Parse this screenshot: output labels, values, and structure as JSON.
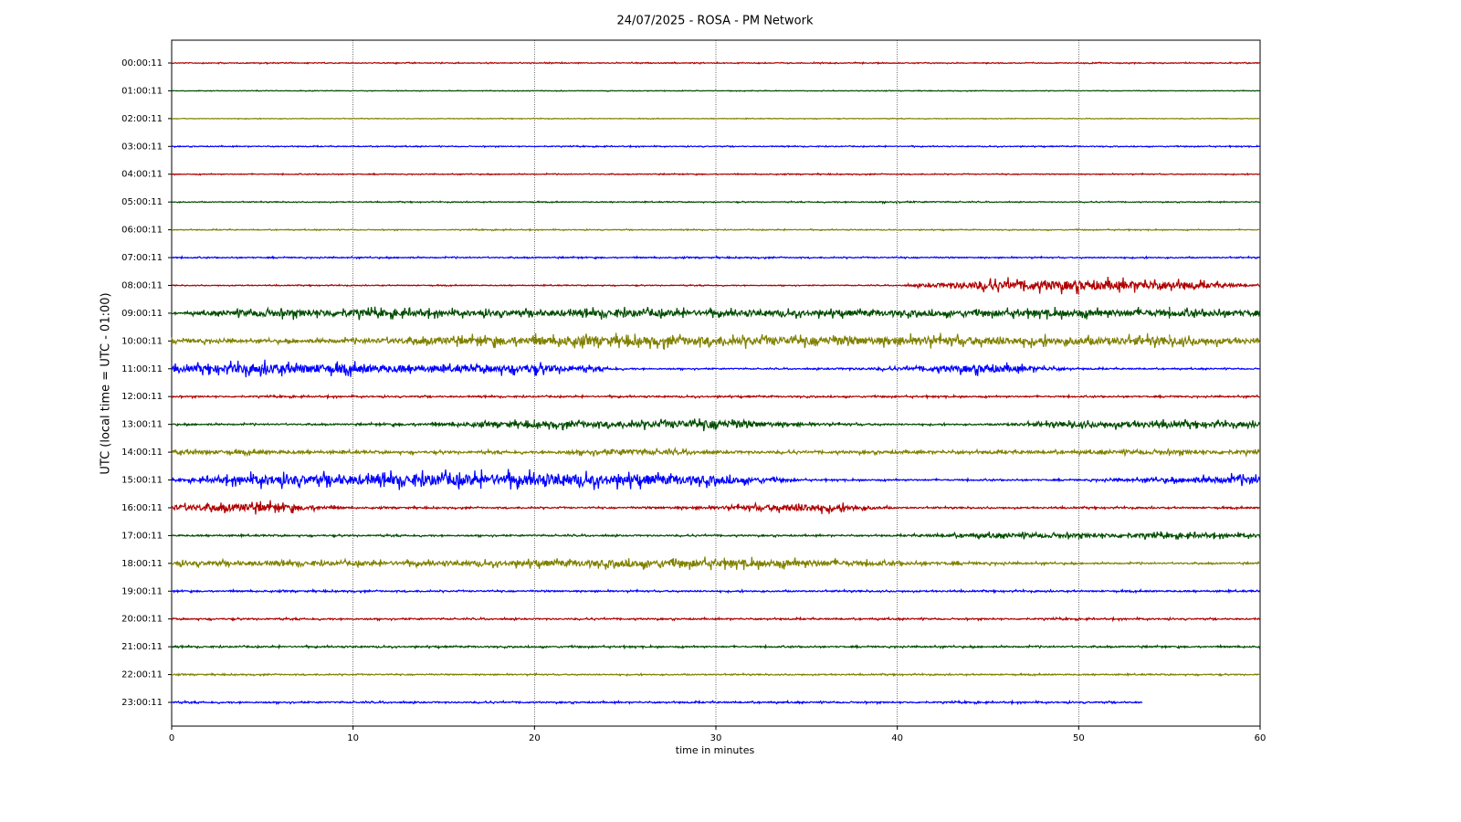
{
  "chart_data": {
    "type": "helicorder",
    "title": "24/07/2025 - ROSA - PM Network",
    "xlabel": "time in minutes",
    "ylabel": "UTC (local time = UTC - 01:00)",
    "xlim": [
      0,
      60
    ],
    "xticks": [
      0,
      10,
      20,
      30,
      40,
      50,
      60
    ],
    "grid": true,
    "series": [
      {
        "name": "00:00:11",
        "color": "#b00000",
        "x": [
          0,
          5,
          10,
          15,
          20,
          25,
          30,
          35,
          40,
          45,
          50,
          55,
          60
        ],
        "values": [
          0.03,
          0.03,
          0.03,
          0.03,
          0.03,
          0.03,
          0.03,
          0.03,
          0.03,
          0.03,
          0.03,
          0.03,
          0.03
        ]
      },
      {
        "name": "01:00:11",
        "color": "#004d00",
        "x": [
          0,
          5,
          10,
          15,
          20,
          25,
          30,
          35,
          40,
          45,
          50,
          55,
          60
        ],
        "values": [
          0.02,
          0.02,
          0.02,
          0.02,
          0.02,
          0.02,
          0.02,
          0.02,
          0.02,
          0.02,
          0.02,
          0.02,
          0.02
        ]
      },
      {
        "name": "02:00:11",
        "color": "#808000",
        "x": [
          0,
          5,
          10,
          15,
          20,
          25,
          30,
          35,
          40,
          45,
          50,
          55,
          60
        ],
        "values": [
          0.02,
          0.02,
          0.02,
          0.02,
          0.02,
          0.02,
          0.02,
          0.02,
          0.02,
          0.02,
          0.02,
          0.02,
          0.02
        ]
      },
      {
        "name": "03:00:11",
        "color": "#0000ff",
        "x": [
          0,
          5,
          10,
          15,
          20,
          25,
          30,
          35,
          40,
          45,
          50,
          55,
          60
        ],
        "values": [
          0.03,
          0.03,
          0.03,
          0.03,
          0.03,
          0.03,
          0.03,
          0.03,
          0.03,
          0.03,
          0.03,
          0.03,
          0.03
        ]
      },
      {
        "name": "04:00:11",
        "color": "#b00000",
        "x": [
          0,
          5,
          10,
          15,
          20,
          25,
          30,
          35,
          40,
          45,
          50,
          55,
          60
        ],
        "values": [
          0.03,
          0.03,
          0.03,
          0.03,
          0.03,
          0.03,
          0.03,
          0.03,
          0.03,
          0.03,
          0.03,
          0.03,
          0.03
        ]
      },
      {
        "name": "05:00:11",
        "color": "#004d00",
        "x": [
          0,
          5,
          10,
          15,
          20,
          25,
          30,
          35,
          40,
          45,
          50,
          55,
          60
        ],
        "values": [
          0.03,
          0.03,
          0.03,
          0.03,
          0.03,
          0.03,
          0.03,
          0.03,
          0.05,
          0.03,
          0.03,
          0.03,
          0.03
        ]
      },
      {
        "name": "06:00:11",
        "color": "#808000",
        "x": [
          0,
          5,
          10,
          15,
          20,
          25,
          30,
          35,
          40,
          45,
          50,
          55,
          60
        ],
        "values": [
          0.03,
          0.03,
          0.03,
          0.03,
          0.03,
          0.03,
          0.03,
          0.03,
          0.03,
          0.03,
          0.03,
          0.03,
          0.03
        ]
      },
      {
        "name": "07:00:11",
        "color": "#0000ff",
        "x": [
          0,
          5,
          10,
          15,
          20,
          25,
          30,
          35,
          40,
          45,
          50,
          55,
          60
        ],
        "values": [
          0.04,
          0.04,
          0.04,
          0.04,
          0.04,
          0.04,
          0.04,
          0.04,
          0.04,
          0.04,
          0.04,
          0.04,
          0.04
        ]
      },
      {
        "name": "08:00:11",
        "color": "#b00000",
        "x": [
          0,
          5,
          10,
          15,
          20,
          25,
          30,
          35,
          40,
          45,
          50,
          55,
          60
        ],
        "values": [
          0.03,
          0.03,
          0.03,
          0.03,
          0.03,
          0.03,
          0.03,
          0.03,
          0.03,
          0.3,
          0.35,
          0.3,
          0.05
        ]
      },
      {
        "name": "09:00:11",
        "color": "#004d00",
        "x": [
          0,
          5,
          10,
          15,
          20,
          25,
          30,
          35,
          40,
          45,
          50,
          55,
          60
        ],
        "values": [
          0.05,
          0.25,
          0.25,
          0.2,
          0.2,
          0.25,
          0.2,
          0.2,
          0.2,
          0.2,
          0.25,
          0.25,
          0.2
        ]
      },
      {
        "name": "10:00:11",
        "color": "#808000",
        "x": [
          0,
          5,
          10,
          15,
          20,
          25,
          30,
          35,
          40,
          45,
          50,
          55,
          60
        ],
        "values": [
          0.15,
          0.1,
          0.15,
          0.25,
          0.3,
          0.3,
          0.3,
          0.3,
          0.3,
          0.3,
          0.25,
          0.3,
          0.15
        ]
      },
      {
        "name": "11:00:11",
        "color": "#0000ff",
        "x": [
          0,
          5,
          10,
          15,
          20,
          25,
          30,
          35,
          40,
          45,
          50,
          55,
          60
        ],
        "values": [
          0.2,
          0.35,
          0.3,
          0.2,
          0.3,
          0.05,
          0.04,
          0.04,
          0.1,
          0.3,
          0.05,
          0.04,
          0.04
        ]
      },
      {
        "name": "12:00:11",
        "color": "#b00000",
        "x": [
          0,
          5,
          10,
          15,
          20,
          25,
          30,
          35,
          40,
          45,
          50,
          55,
          60
        ],
        "values": [
          0.05,
          0.05,
          0.05,
          0.05,
          0.05,
          0.05,
          0.05,
          0.05,
          0.05,
          0.05,
          0.05,
          0.05,
          0.05
        ]
      },
      {
        "name": "13:00:11",
        "color": "#004d00",
        "x": [
          0,
          5,
          10,
          15,
          20,
          25,
          30,
          35,
          40,
          45,
          50,
          55,
          60
        ],
        "values": [
          0.05,
          0.05,
          0.05,
          0.1,
          0.2,
          0.2,
          0.3,
          0.1,
          0.05,
          0.05,
          0.2,
          0.2,
          0.15
        ]
      },
      {
        "name": "14:00:11",
        "color": "#808000",
        "x": [
          0,
          5,
          10,
          15,
          20,
          25,
          30,
          35,
          40,
          45,
          50,
          55,
          60
        ],
        "values": [
          0.15,
          0.12,
          0.08,
          0.08,
          0.08,
          0.2,
          0.1,
          0.08,
          0.1,
          0.1,
          0.1,
          0.15,
          0.12
        ]
      },
      {
        "name": "15:00:11",
        "color": "#0000ff",
        "x": [
          0,
          5,
          10,
          15,
          20,
          25,
          30,
          35,
          40,
          45,
          50,
          55,
          60
        ],
        "values": [
          0.05,
          0.35,
          0.35,
          0.4,
          0.4,
          0.35,
          0.3,
          0.05,
          0.05,
          0.05,
          0.05,
          0.15,
          0.3
        ]
      },
      {
        "name": "16:00:11",
        "color": "#b00000",
        "x": [
          0,
          5,
          10,
          15,
          20,
          25,
          30,
          35,
          40,
          45,
          50,
          55,
          60
        ],
        "values": [
          0.2,
          0.3,
          0.05,
          0.05,
          0.05,
          0.05,
          0.1,
          0.3,
          0.05,
          0.05,
          0.05,
          0.05,
          0.05
        ]
      },
      {
        "name": "17:00:11",
        "color": "#004d00",
        "x": [
          0,
          5,
          10,
          15,
          20,
          25,
          30,
          35,
          40,
          45,
          50,
          55,
          60
        ],
        "values": [
          0.05,
          0.05,
          0.05,
          0.05,
          0.05,
          0.05,
          0.05,
          0.05,
          0.05,
          0.15,
          0.15,
          0.15,
          0.12
        ]
      },
      {
        "name": "18:00:11",
        "color": "#808000",
        "x": [
          0,
          5,
          10,
          15,
          20,
          25,
          30,
          35,
          40,
          45,
          50,
          55,
          60
        ],
        "values": [
          0.15,
          0.15,
          0.15,
          0.15,
          0.2,
          0.25,
          0.25,
          0.25,
          0.12,
          0.08,
          0.05,
          0.05,
          0.05
        ]
      },
      {
        "name": "19:00:11",
        "color": "#0000ff",
        "x": [
          0,
          5,
          10,
          15,
          20,
          25,
          30,
          35,
          40,
          45,
          50,
          55,
          60
        ],
        "values": [
          0.05,
          0.05,
          0.05,
          0.05,
          0.05,
          0.05,
          0.05,
          0.05,
          0.05,
          0.05,
          0.05,
          0.05,
          0.05
        ]
      },
      {
        "name": "20:00:11",
        "color": "#b00000",
        "x": [
          0,
          5,
          10,
          15,
          20,
          25,
          30,
          35,
          40,
          45,
          50,
          55,
          60
        ],
        "values": [
          0.05,
          0.05,
          0.05,
          0.05,
          0.05,
          0.05,
          0.05,
          0.05,
          0.05,
          0.05,
          0.05,
          0.05,
          0.05
        ]
      },
      {
        "name": "21:00:11",
        "color": "#004d00",
        "x": [
          0,
          5,
          10,
          15,
          20,
          25,
          30,
          35,
          40,
          45,
          50,
          55,
          60
        ],
        "values": [
          0.05,
          0.05,
          0.05,
          0.05,
          0.05,
          0.05,
          0.05,
          0.05,
          0.05,
          0.05,
          0.05,
          0.05,
          0.05
        ]
      },
      {
        "name": "22:00:11",
        "color": "#808000",
        "x": [
          0,
          5,
          10,
          15,
          20,
          25,
          30,
          35,
          40,
          45,
          50,
          55,
          60
        ],
        "values": [
          0.04,
          0.04,
          0.04,
          0.04,
          0.04,
          0.04,
          0.04,
          0.04,
          0.04,
          0.04,
          0.04,
          0.04,
          0.04
        ]
      },
      {
        "name": "23:00:11",
        "color": "#0000ff",
        "x": [
          0,
          5,
          10,
          15,
          20,
          25,
          30,
          35,
          40,
          45,
          50,
          53.5
        ],
        "values": [
          0.05,
          0.05,
          0.05,
          0.05,
          0.05,
          0.05,
          0.05,
          0.05,
          0.05,
          0.05,
          0.05,
          0.05
        ]
      }
    ]
  }
}
